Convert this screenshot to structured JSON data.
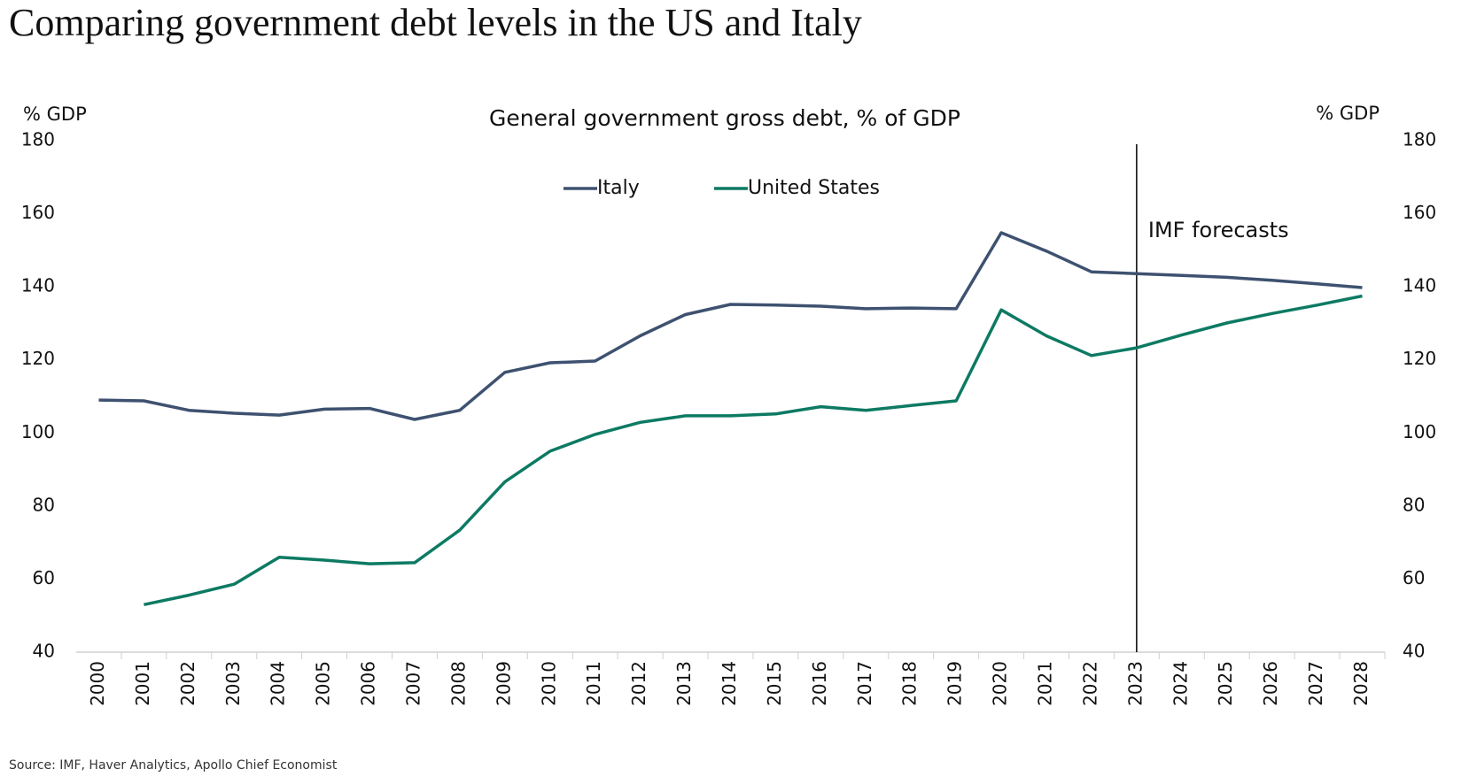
{
  "chart_data": {
    "type": "line",
    "title": "Comparing government debt levels in the US and Italy",
    "subtitle": "General government gross debt, % of GDP",
    "ylabel": "% GDP",
    "y2label": "% GDP",
    "source": "Source: IMF, Haver Analytics, Apollo Chief Economist",
    "categories": [
      "2000",
      "2001",
      "2002",
      "2003",
      "2004",
      "2005",
      "2006",
      "2007",
      "2008",
      "2009",
      "2010",
      "2011",
      "2012",
      "2013",
      "2014",
      "2015",
      "2016",
      "2017",
      "2018",
      "2019",
      "2020",
      "2021",
      "2022",
      "2023",
      "2024",
      "2025",
      "2026",
      "2027",
      "2028"
    ],
    "series": [
      {
        "name": "Italy",
        "color": "#3e5170",
        "values": [
          109,
          108.8,
          106.2,
          105.4,
          104.9,
          106.5,
          106.7,
          103.7,
          106.2,
          116.6,
          119.2,
          119.7,
          126.6,
          132.4,
          135.2,
          135,
          134.7,
          134,
          134.2,
          134,
          154.8,
          149.8,
          144.1,
          143.6,
          143.1,
          142.6,
          141.8,
          140.8,
          139.8
        ]
      },
      {
        "name": "United States",
        "color": "#0d7a63",
        "values": [
          null,
          53,
          55.6,
          58.6,
          66,
          65.2,
          64.2,
          64.5,
          73.4,
          86.6,
          95,
          99.6,
          102.9,
          104.7,
          104.7,
          105.2,
          107.2,
          106.2,
          107.5,
          108.8,
          133.7,
          126.6,
          121.2,
          123.3,
          126.8,
          130.1,
          132.7,
          135,
          137.5
        ]
      }
    ],
    "ylim": [
      40,
      180
    ],
    "yticks": [
      40,
      60,
      80,
      100,
      120,
      140,
      160,
      180
    ],
    "y2lim": [
      40,
      180
    ],
    "y2ticks": [
      40,
      60,
      80,
      100,
      120,
      140,
      160,
      180
    ],
    "annotations": [
      {
        "text": "IMF forecasts",
        "x": "2023"
      }
    ],
    "grid": false,
    "legend": "top"
  }
}
